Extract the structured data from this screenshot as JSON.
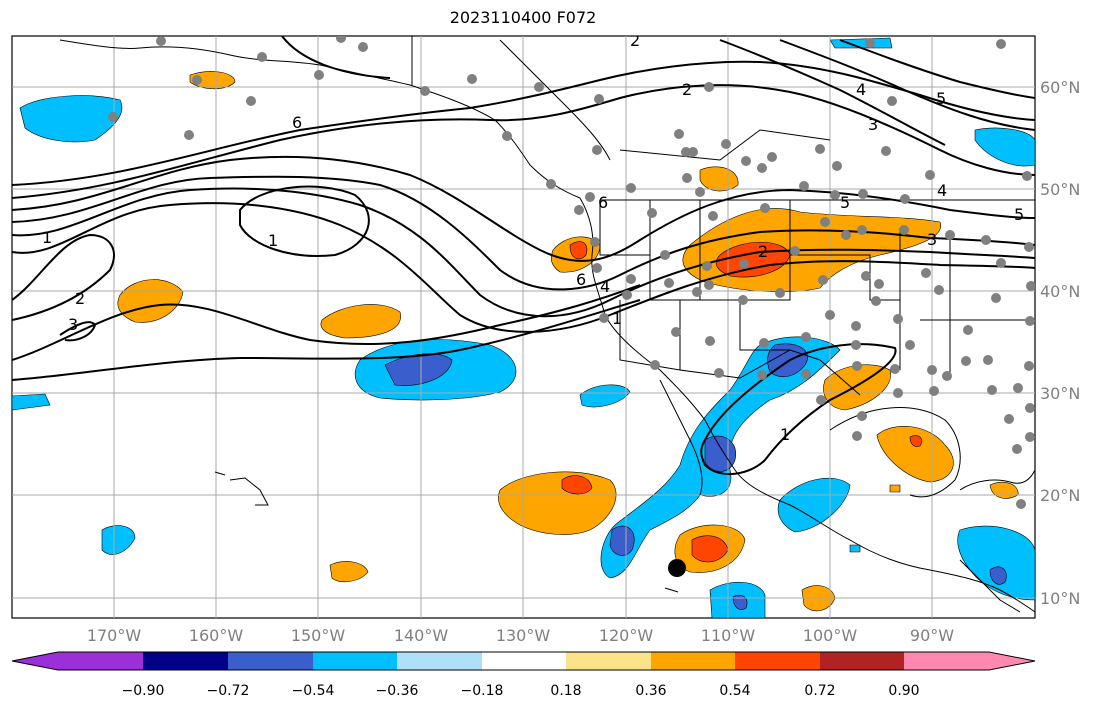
{
  "title": "2023110400 F072",
  "longitude_labels": [
    "170°W",
    "160°W",
    "150°W",
    "140°W",
    "130°W",
    "120°W",
    "110°W",
    "100°W",
    "90°W"
  ],
  "latitude_labels": [
    "60°N",
    "50°N",
    "40°N",
    "30°N",
    "20°N",
    "10°N"
  ],
  "colorbar": {
    "ticks": [
      "−0.90",
      "−0.72",
      "−0.54",
      "−0.36",
      "−0.18",
      "0.18",
      "0.36",
      "0.54",
      "0.72",
      "0.90"
    ],
    "colors": [
      "#9b30d9",
      "#00008b",
      "#3a5fcd",
      "#00bfff",
      "#b0e0f8",
      "#ffffff",
      "#fbe38a",
      "#ffa500",
      "#ff4500",
      "#b22222",
      "#ff88b0"
    ]
  },
  "contour_labels": [
    "1",
    "2",
    "3",
    "2",
    "6",
    "1",
    "6",
    "4",
    "1",
    "2",
    "3",
    "4",
    "5",
    "5",
    "2",
    "3",
    "1",
    "4",
    "5",
    "6"
  ],
  "colors": {
    "contour": "#000000",
    "grid": "#a9a9a9",
    "station": "#808080",
    "marker": "#000000"
  }
}
